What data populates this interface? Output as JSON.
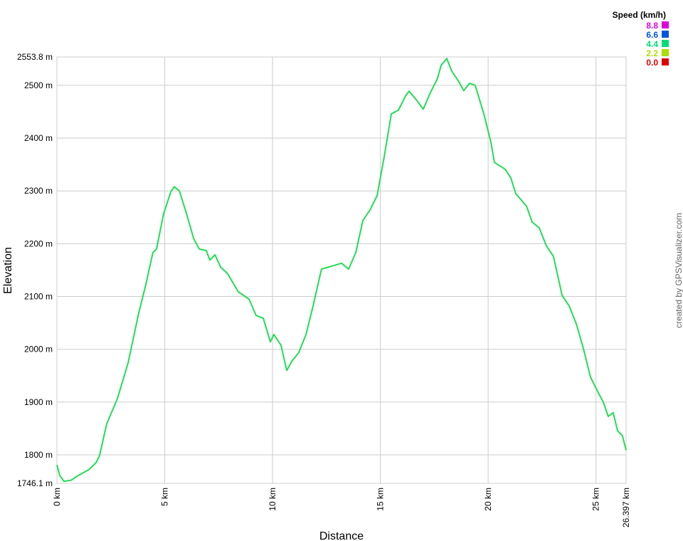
{
  "chart_data": {
    "type": "line",
    "x_label": "Distance",
    "y_label": "Elevation",
    "credit": "created by GPSVisualizer.com",
    "x": [
      0,
      0.13,
      0.33,
      0.66,
      0.99,
      1.48,
      1.81,
      1.98,
      2.31,
      2.8,
      3.3,
      3.79,
      4.12,
      4.45,
      4.62,
      4.95,
      5.28,
      5.44,
      5.68,
      6.01,
      6.34,
      6.6,
      6.93,
      7.09,
      7.33,
      7.59,
      7.92,
      8.41,
      8.91,
      9.24,
      9.57,
      9.9,
      10.06,
      10.39,
      10.66,
      10.89,
      11.22,
      11.55,
      11.88,
      12.27,
      12.87,
      13.2,
      13.53,
      13.86,
      14.19,
      14.52,
      14.85,
      15.18,
      15.51,
      15.84,
      16.17,
      16.33,
      16.66,
      16.99,
      17.32,
      17.65,
      17.82,
      18.08,
      18.31,
      18.64,
      18.87,
      19.14,
      19.4,
      19.8,
      20.13,
      20.29,
      20.79,
      21.05,
      21.28,
      21.78,
      22.04,
      22.37,
      22.7,
      23.03,
      23.43,
      23.76,
      24.09,
      24.42,
      24.75,
      25.08,
      25.34,
      25.57,
      25.8,
      26.0,
      26.23,
      26.397
    ],
    "series": [
      {
        "color": "#22dd55",
        "values": [
          1781,
          1761,
          1750,
          1752,
          1761,
          1772,
          1785,
          1799,
          1859,
          1906,
          1974,
          2068,
          2122,
          2183,
          2190,
          2257,
          2298,
          2308,
          2300,
          2257,
          2210,
          2190,
          2187,
          2169,
          2179,
          2156,
          2143,
          2109,
          2095,
          2064,
          2059,
          2014,
          2028,
          2008,
          1960,
          1977,
          1994,
          2028,
          2082,
          2152,
          2159,
          2163,
          2152,
          2183,
          2244,
          2264,
          2291,
          2365,
          2446,
          2453,
          2480,
          2489,
          2473,
          2455,
          2486,
          2513,
          2538,
          2551,
          2527,
          2507,
          2490,
          2504,
          2500,
          2446,
          2392,
          2354,
          2341,
          2325,
          2295,
          2271,
          2241,
          2230,
          2196,
          2176,
          2102,
          2082,
          2048,
          2001,
          1947,
          1920,
          1900,
          1873,
          1880,
          1846,
          1836,
          1809
        ]
      }
    ],
    "xlim": [
      0,
      26.397
    ],
    "xticks": [
      {
        "value": 0,
        "label": "0 km"
      },
      {
        "value": 5,
        "label": "5 km"
      },
      {
        "value": 10,
        "label": "10 km"
      },
      {
        "value": 15,
        "label": "15 km"
      },
      {
        "value": 20,
        "label": "20 km"
      },
      {
        "value": 25,
        "label": "25 km"
      },
      {
        "value": 26.397,
        "label": "26.397 km"
      }
    ],
    "ylim": [
      1746.1,
      2553.8
    ],
    "yticks": [
      {
        "value": 1746.1,
        "label": "1746.1 m"
      },
      {
        "value": 1800,
        "label": "1800 m"
      },
      {
        "value": 1900,
        "label": "1900 m"
      },
      {
        "value": 2000,
        "label": "2000 m"
      },
      {
        "value": 2100,
        "label": "2100 m"
      },
      {
        "value": 2200,
        "label": "2200 m"
      },
      {
        "value": 2300,
        "label": "2300 m"
      },
      {
        "value": 2400,
        "label": "2400 m"
      },
      {
        "value": 2500,
        "label": "2500 m"
      },
      {
        "value": 2553.8,
        "label": "2553.8 m"
      }
    ],
    "grid": true,
    "legend": {
      "title": "Speed (km/h)",
      "labels": [
        "8.8",
        "6.6",
        "4.4",
        "2.2",
        "0.0"
      ],
      "colors": [
        "#dd00dd",
        "#0055dd",
        "#00dd77",
        "#aadd00",
        "#dd0000"
      ]
    }
  }
}
